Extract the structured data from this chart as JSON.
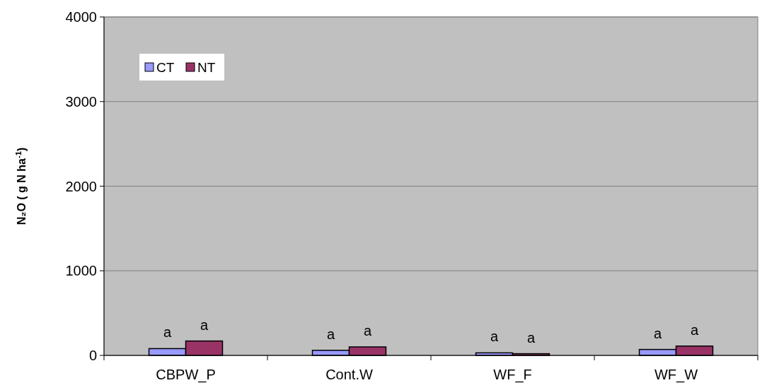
{
  "chart_data": {
    "type": "bar",
    "ylabel": "N₂O ( g N ha$^{-1}$)",
    "categories": [
      "CBPW_P",
      "Cont.W",
      "WF_F",
      "WF_W"
    ],
    "series": [
      {
        "name": "CT",
        "color": "#9999ff",
        "values": [
          80,
          60,
          30,
          70
        ],
        "value_labels": [
          "a",
          "a",
          "a",
          "a"
        ]
      },
      {
        "name": "NT",
        "color": "#993366",
        "values": [
          170,
          100,
          20,
          110
        ],
        "value_labels": [
          "a",
          "a",
          "a",
          "a"
        ]
      }
    ],
    "ylim": [
      0,
      4000
    ],
    "yticks": [
      0,
      1000,
      2000,
      3000,
      4000
    ],
    "grid": "y",
    "legend": "top left"
  }
}
